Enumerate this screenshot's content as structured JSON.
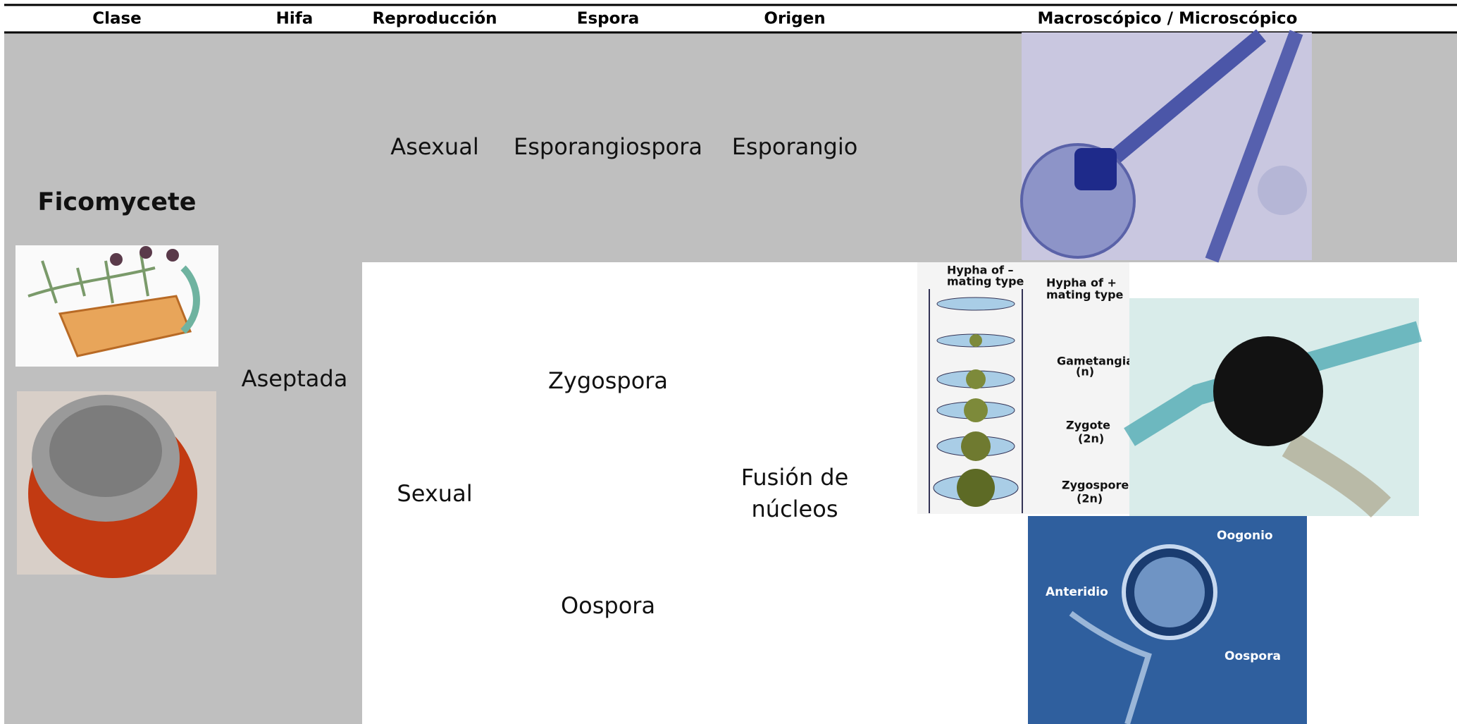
{
  "header": {
    "columns": [
      "Clase",
      "Hifa",
      "Reproducción",
      "Espora",
      "Origen",
      "Macroscópico / Microscópico"
    ]
  },
  "clase": "Ficomycete",
  "hifa": "Aseptada",
  "rows": [
    {
      "reproduccion": "Asexual",
      "espora": [
        "Esporangiospora"
      ],
      "origen": [
        "Esporangio"
      ]
    },
    {
      "reproduccion": "Sexual",
      "espora": [
        "Zygospora",
        "Oospora"
      ],
      "origen": [
        "Fusión de",
        "núcleos"
      ]
    }
  ],
  "images": {
    "zygospore_diagram": {
      "labels": [
        "Hypha of –",
        "mating type",
        "Hypha of +",
        "mating type",
        "Gametangia",
        "(n)",
        "Zygote",
        "(2n)",
        "Zygospore",
        "(2n)"
      ]
    },
    "oospore_micrograph": {
      "labels": [
        "Oogonio",
        "Anteridio",
        "Oospora"
      ]
    }
  }
}
